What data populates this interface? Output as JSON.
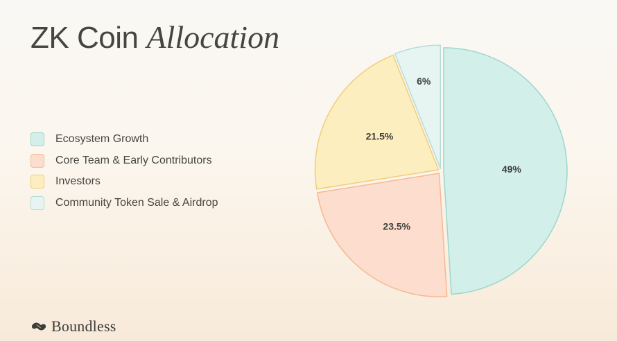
{
  "header": {
    "title_main": "ZK Coin",
    "title_italic": "Allocation"
  },
  "brand": {
    "name": "Boundless",
    "icon": "boundless-logo-icon"
  },
  "chart_data": {
    "type": "pie",
    "title": "ZK Coin Allocation",
    "legend_position": "left",
    "slices": [
      {
        "label": "Ecosystem Growth",
        "value": 49,
        "display": "49%",
        "fill": "#d3efea",
        "stroke": "#9ed6cc"
      },
      {
        "label": "Core Team & Early Contributors",
        "value": 23.5,
        "display": "23.5%",
        "fill": "#fdddcd",
        "stroke": "#f5b994"
      },
      {
        "label": "Investors",
        "value": 21.5,
        "display": "21.5%",
        "fill": "#fdeebf",
        "stroke": "#f1cd7a"
      },
      {
        "label": "Community Token Sale & Airdrop",
        "value": 6,
        "display": "6%",
        "fill": "#e6f5f2",
        "stroke": "#b7dcd6"
      }
    ]
  }
}
